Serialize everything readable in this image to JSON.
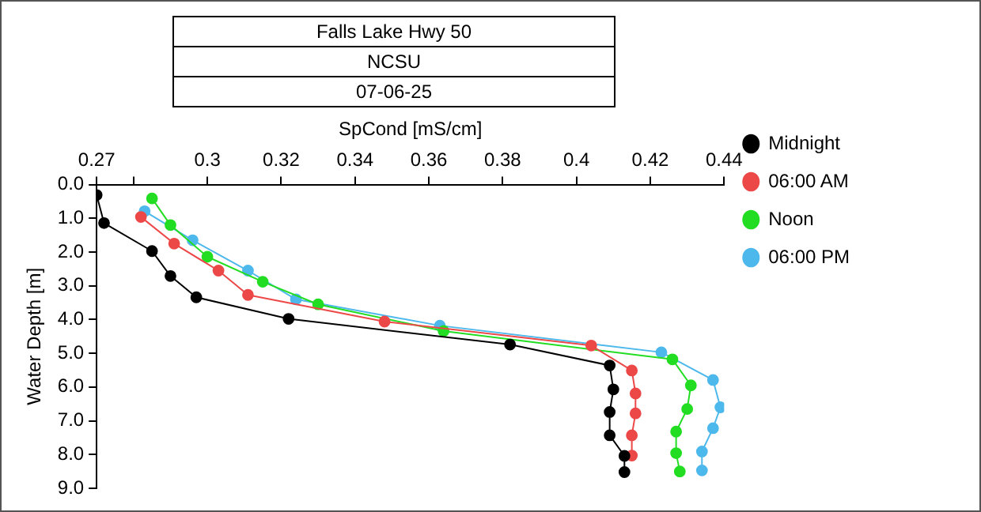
{
  "chart_data": {
    "type": "line",
    "title": "Falls Lake Hwy 50",
    "subtitle": "NCSU",
    "annotations": [
      "07-06-25"
    ],
    "xlabel": "SpCond [mS/cm]",
    "ylabel": "Water Depth [m]",
    "xlim": [
      0.27,
      0.44
    ],
    "xticks": [
      0.27,
      {
        "value": 0.28,
        "label": null
      },
      0.3,
      0.32,
      0.34,
      0.36,
      0.38,
      0.4,
      0.42,
      0.44
    ],
    "ylim": [
      9,
      0
    ],
    "yticks": [
      {
        "value": 0,
        "label": "0.0"
      },
      {
        "value": 1,
        "label": "1.0"
      },
      {
        "value": 2,
        "label": "2.0"
      },
      {
        "value": 3,
        "label": "3.0"
      },
      {
        "value": 4,
        "label": "4.0"
      },
      {
        "value": 5,
        "label": "5.0"
      },
      {
        "value": 6,
        "label": "6.0"
      },
      {
        "value": 7,
        "label": "7.0"
      },
      {
        "value": 8,
        "label": "8.0"
      },
      {
        "value": 9,
        "label": "9.0"
      }
    ],
    "grid": false,
    "legend": "top right",
    "marker": "circle",
    "line_style": "solid",
    "series": [
      {
        "name": "Midnight",
        "color": "#000000",
        "x": [
          0.27,
          0.272,
          0.285,
          0.29,
          0.297,
          0.322,
          0.382,
          0.409,
          0.41,
          0.409,
          0.409,
          0.413,
          0.413
        ],
        "values": [
          0.31,
          1.14,
          1.97,
          2.71,
          3.34,
          3.98,
          4.74,
          5.36,
          6.07,
          6.74,
          7.43,
          8.04,
          8.52
        ]
      },
      {
        "name": "06:00 AM",
        "color": "#ec4848",
        "x": [
          0.282,
          0.291,
          0.303,
          0.311,
          0.348,
          0.404,
          0.415,
          0.416,
          0.416,
          0.415,
          0.415
        ],
        "values": [
          0.96,
          1.75,
          2.55,
          3.27,
          4.06,
          4.77,
          5.51,
          6.19,
          6.78,
          7.43,
          8.03
        ]
      },
      {
        "name": "Noon",
        "color": "#22dd22",
        "x": [
          0.285,
          0.29,
          0.3,
          0.315,
          0.33,
          0.364,
          0.426,
          0.431,
          0.43,
          0.427,
          0.427,
          0.428
        ],
        "values": [
          0.41,
          1.2,
          2.14,
          2.88,
          3.55,
          4.34,
          5.18,
          5.95,
          6.65,
          7.32,
          7.96,
          8.5
        ]
      },
      {
        "name": "06:00 PM",
        "color": "#4db8ec",
        "x": [
          0.283,
          0.296,
          0.311,
          0.324,
          0.363,
          0.423,
          0.437,
          0.439,
          0.437,
          0.434,
          0.434
        ],
        "values": [
          0.79,
          1.65,
          2.55,
          3.4,
          4.18,
          4.97,
          5.79,
          6.6,
          7.22,
          7.91,
          8.47
        ]
      }
    ]
  }
}
